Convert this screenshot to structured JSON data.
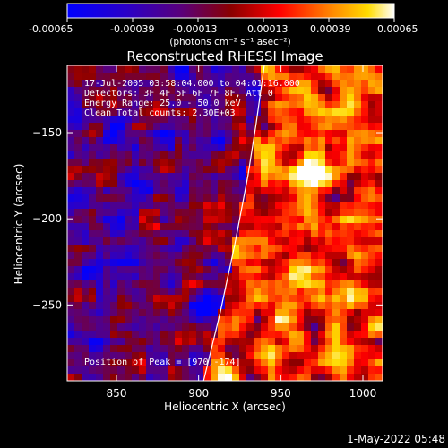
{
  "colorbar": {
    "ticks": [
      "-0.00065",
      "-0.00039",
      "-0.00013",
      "0.00013",
      "0.00039",
      "0.00065"
    ],
    "unit_label": "(photons cm⁻² s⁻¹ asec⁻²)",
    "range": [
      -0.00065,
      0.00065
    ],
    "colors": [
      "#0000ff",
      "#2a00c8",
      "#5a007a",
      "#8a0000",
      "#ff0000",
      "#ff8000",
      "#ffdc00",
      "#ffffff"
    ]
  },
  "chart_data": {
    "type": "heatmap",
    "title": "Reconstructed RHESSI Image",
    "xlabel": "Heliocentric X (arcsec)",
    "ylabel": "Heliocentric Y (arcsec)",
    "xlim": [
      820,
      1012
    ],
    "ylim": [
      -294,
      -111
    ],
    "xticks": [
      850,
      900,
      950,
      1000
    ],
    "yticks": [
      -150,
      -200,
      -250
    ],
    "xtick_labels": [
      "850",
      "900",
      "950",
      "1000"
    ],
    "ytick_labels": [
      "−150",
      "−200",
      "−250"
    ],
    "grid": false,
    "annotations": [
      "17-Jul-2005 03:58:04.000 to 04:01:16.000",
      "Detectors: 3F 4F 5F 6F 7F 8F, Att 0",
      "Energy Range: 25.0 - 50.0 keV",
      "Clean    Total counts: 2.30E+03"
    ],
    "peak_label": "Position of Peak = [970,-174]",
    "peak": [
      970,
      -174
    ],
    "limb_curve": {
      "x": [
        903,
        913,
        922,
        930,
        935,
        940
      ],
      "y": [
        -294,
        -255,
        -215,
        -175,
        -145,
        -111
      ]
    }
  },
  "timestamp": "1-May-2022 05:48"
}
